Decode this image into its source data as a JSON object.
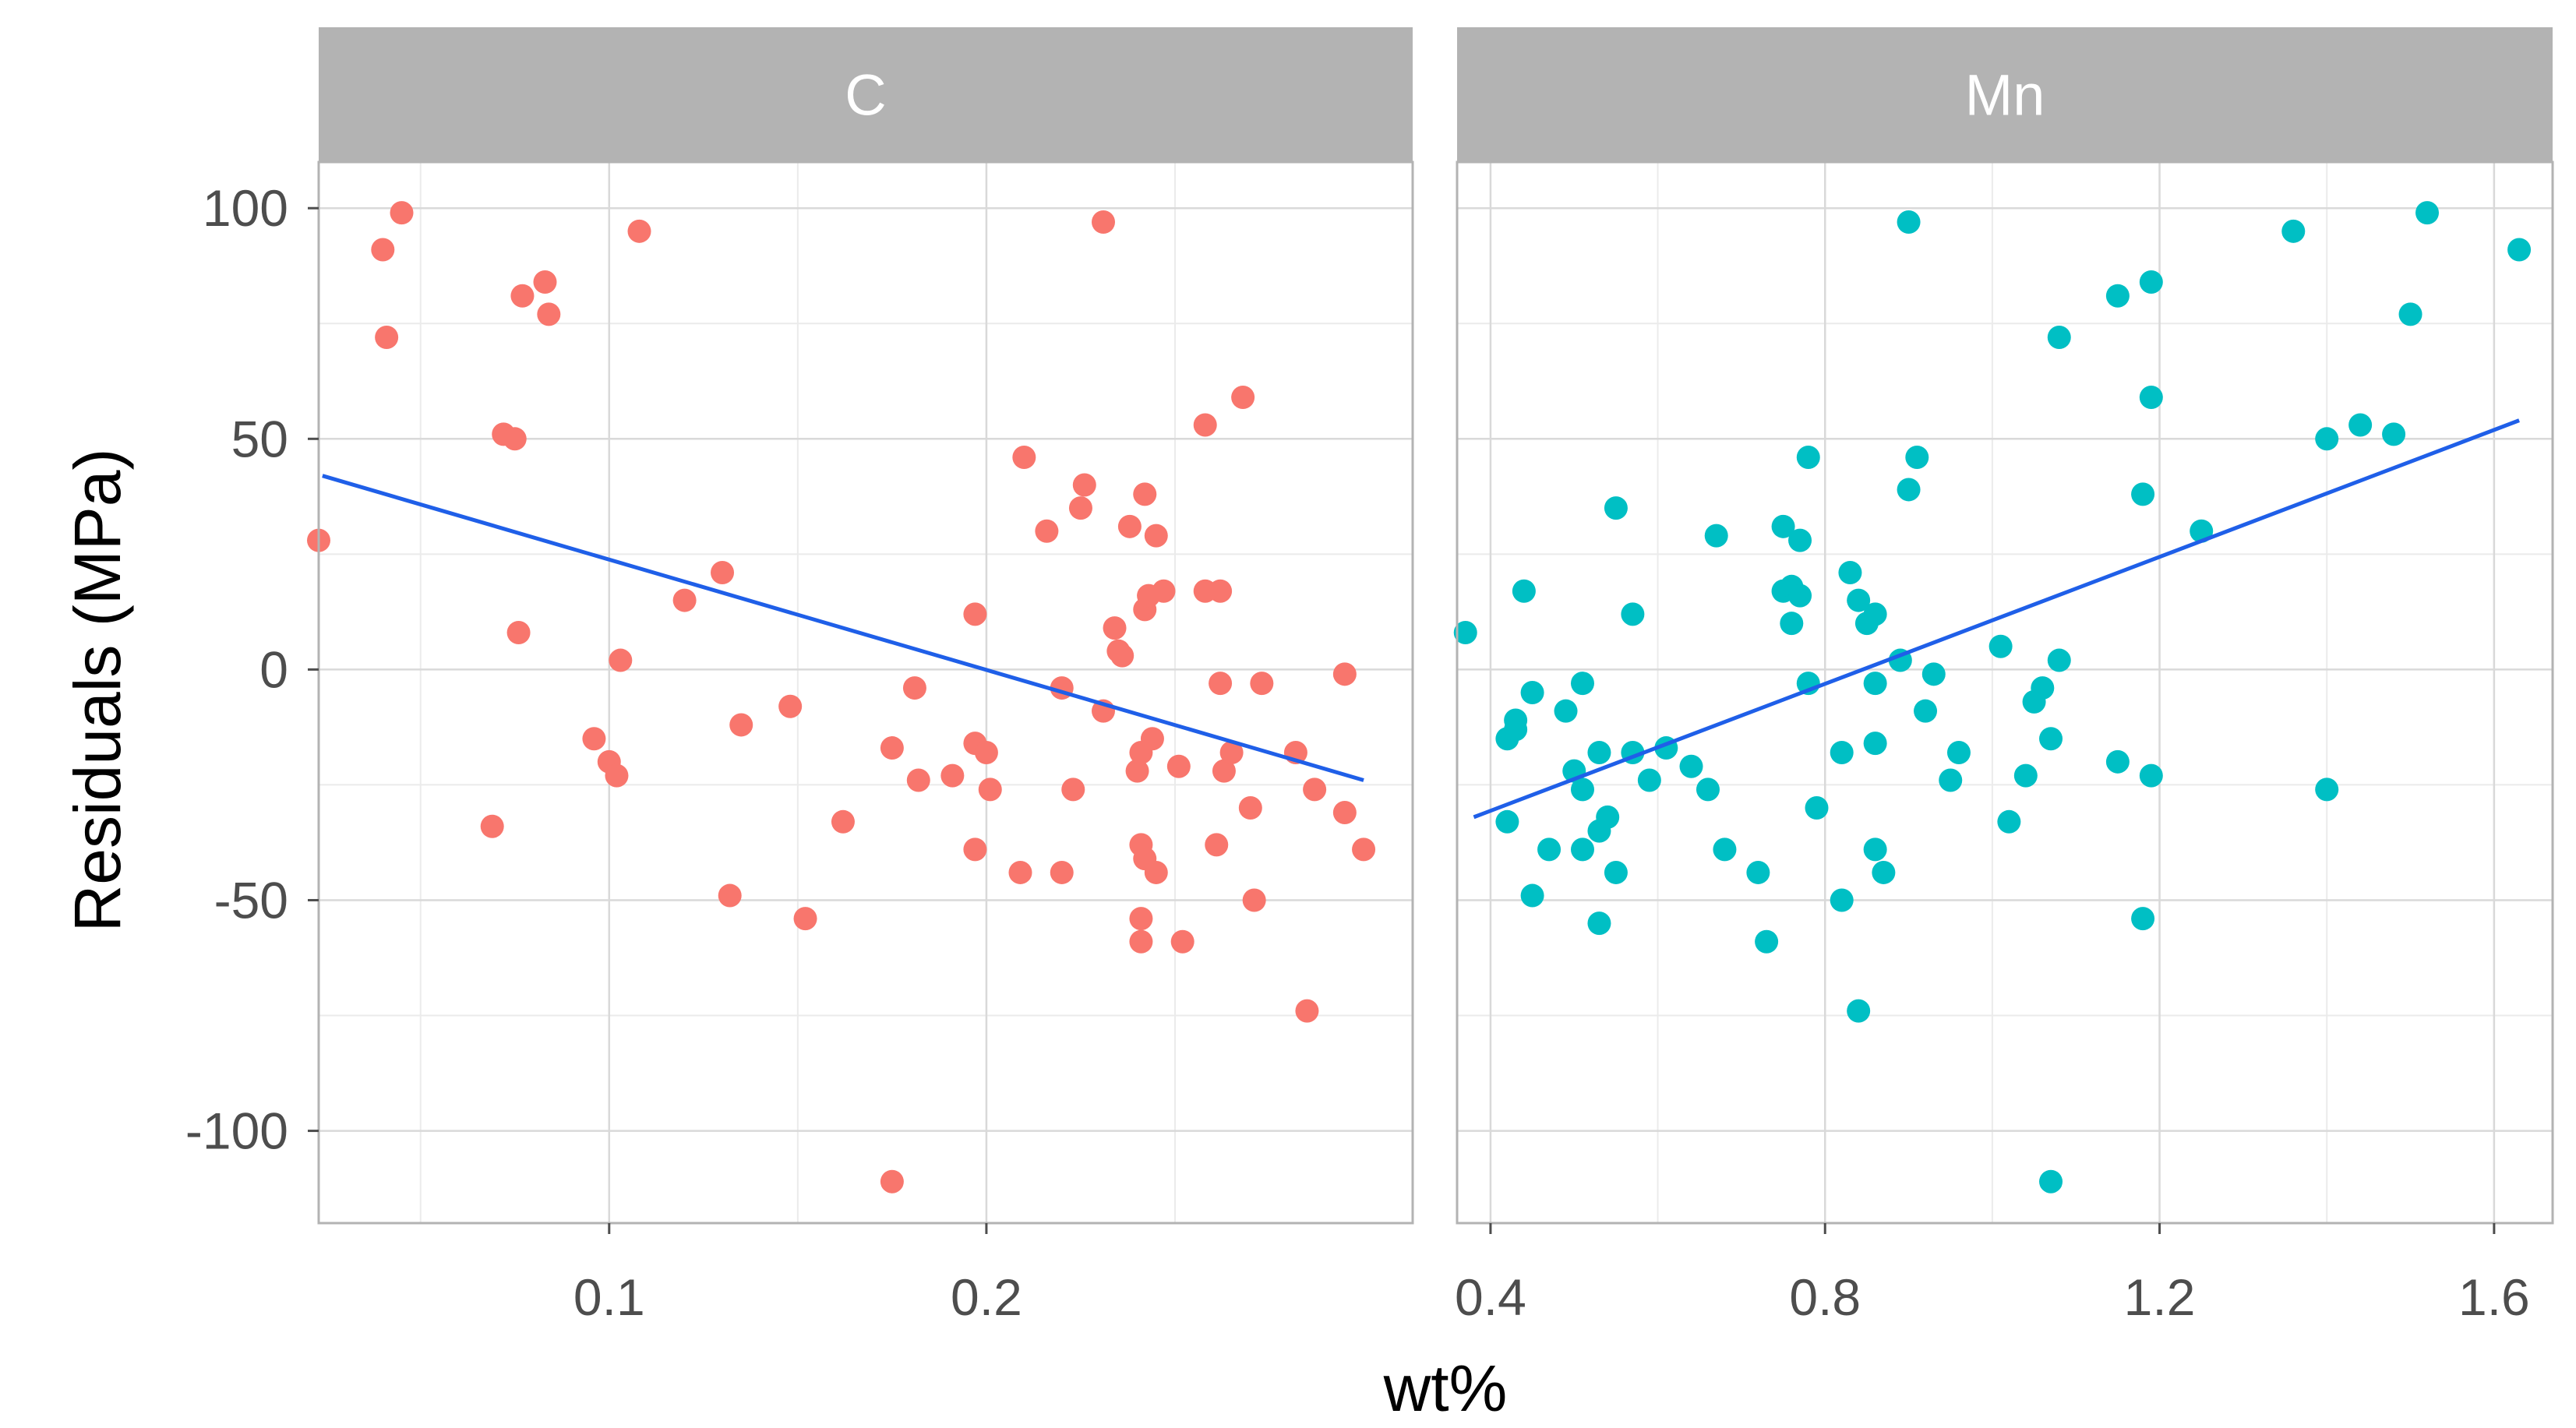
{
  "chart_data": {
    "type": "scatter",
    "title": "",
    "xlabel": "wt%",
    "ylabel": "Residuals (MPa)",
    "ylim": [
      -120,
      110
    ],
    "y_ticks": [
      -100,
      -50,
      0,
      50,
      100
    ],
    "y_tick_labels": [
      "-100",
      "-50",
      "0",
      "50",
      "100"
    ],
    "grid": true,
    "point_colors": {
      "C": "#F8766D",
      "Mn": "#00BFC4"
    },
    "line_color": "#1F5FE8",
    "strip_color": "#B3B3B3",
    "facets": [
      {
        "label": "C",
        "xlim": [
          0.023,
          0.313
        ],
        "x_ticks": [
          0.1,
          0.2
        ],
        "x_tick_labels": [
          "0.1",
          "0.2"
        ],
        "trend": {
          "x": [
            0.024,
            0.3
          ],
          "y": [
            42,
            -24
          ]
        },
        "points": [
          {
            "x": 0.023,
            "y": 28
          },
          {
            "x": 0.04,
            "y": 91
          },
          {
            "x": 0.041,
            "y": 72
          },
          {
            "x": 0.045,
            "y": 99
          },
          {
            "x": 0.069,
            "y": -34
          },
          {
            "x": 0.072,
            "y": 51
          },
          {
            "x": 0.075,
            "y": 50
          },
          {
            "x": 0.076,
            "y": 8
          },
          {
            "x": 0.077,
            "y": 81
          },
          {
            "x": 0.083,
            "y": 84
          },
          {
            "x": 0.084,
            "y": 77
          },
          {
            "x": 0.096,
            "y": -15
          },
          {
            "x": 0.1,
            "y": -20
          },
          {
            "x": 0.102,
            "y": -23
          },
          {
            "x": 0.103,
            "y": 2
          },
          {
            "x": 0.108,
            "y": 95
          },
          {
            "x": 0.12,
            "y": 15
          },
          {
            "x": 0.13,
            "y": 21
          },
          {
            "x": 0.132,
            "y": -49
          },
          {
            "x": 0.135,
            "y": -12
          },
          {
            "x": 0.148,
            "y": -8
          },
          {
            "x": 0.152,
            "y": -54
          },
          {
            "x": 0.162,
            "y": -33
          },
          {
            "x": 0.175,
            "y": -111
          },
          {
            "x": 0.175,
            "y": -17
          },
          {
            "x": 0.181,
            "y": -4
          },
          {
            "x": 0.182,
            "y": -24
          },
          {
            "x": 0.191,
            "y": -23
          },
          {
            "x": 0.197,
            "y": 12
          },
          {
            "x": 0.197,
            "y": -16
          },
          {
            "x": 0.197,
            "y": -39
          },
          {
            "x": 0.2,
            "y": -18
          },
          {
            "x": 0.201,
            "y": -26
          },
          {
            "x": 0.209,
            "y": -44
          },
          {
            "x": 0.21,
            "y": 46
          },
          {
            "x": 0.216,
            "y": 30
          },
          {
            "x": 0.22,
            "y": -44
          },
          {
            "x": 0.22,
            "y": -4
          },
          {
            "x": 0.223,
            "y": -26
          },
          {
            "x": 0.225,
            "y": 35
          },
          {
            "x": 0.226,
            "y": 40
          },
          {
            "x": 0.231,
            "y": -9
          },
          {
            "x": 0.231,
            "y": 97
          },
          {
            "x": 0.234,
            "y": 9
          },
          {
            "x": 0.235,
            "y": 4
          },
          {
            "x": 0.236,
            "y": 3
          },
          {
            "x": 0.238,
            "y": 31
          },
          {
            "x": 0.24,
            "y": -22
          },
          {
            "x": 0.241,
            "y": -18
          },
          {
            "x": 0.241,
            "y": -54
          },
          {
            "x": 0.241,
            "y": -59
          },
          {
            "x": 0.241,
            "y": -38
          },
          {
            "x": 0.242,
            "y": -41
          },
          {
            "x": 0.242,
            "y": 13
          },
          {
            "x": 0.242,
            "y": 38
          },
          {
            "x": 0.243,
            "y": 16
          },
          {
            "x": 0.244,
            "y": -15
          },
          {
            "x": 0.245,
            "y": -44
          },
          {
            "x": 0.245,
            "y": 29
          },
          {
            "x": 0.247,
            "y": 17
          },
          {
            "x": 0.251,
            "y": -21
          },
          {
            "x": 0.252,
            "y": -59
          },
          {
            "x": 0.258,
            "y": 17
          },
          {
            "x": 0.258,
            "y": 53
          },
          {
            "x": 0.261,
            "y": -38
          },
          {
            "x": 0.262,
            "y": 17
          },
          {
            "x": 0.262,
            "y": -3
          },
          {
            "x": 0.263,
            "y": -22
          },
          {
            "x": 0.265,
            "y": -18
          },
          {
            "x": 0.268,
            "y": 59
          },
          {
            "x": 0.27,
            "y": -30
          },
          {
            "x": 0.271,
            "y": -50
          },
          {
            "x": 0.273,
            "y": -3
          },
          {
            "x": 0.282,
            "y": -18
          },
          {
            "x": 0.285,
            "y": -74
          },
          {
            "x": 0.287,
            "y": -26
          },
          {
            "x": 0.295,
            "y": -31
          },
          {
            "x": 0.295,
            "y": -1
          },
          {
            "x": 0.3,
            "y": -39
          }
        ]
      },
      {
        "label": "Mn",
        "xlim": [
          0.36,
          1.67
        ],
        "x_ticks": [
          0.4,
          0.8,
          1.2,
          1.6
        ],
        "x_tick_labels": [
          "0.4",
          "0.8",
          "1.2",
          "1.6"
        ],
        "trend": {
          "x": [
            0.38,
            1.63
          ],
          "y": [
            -32,
            54
          ]
        },
        "points": [
          {
            "x": 0.37,
            "y": 8
          },
          {
            "x": 0.42,
            "y": -15
          },
          {
            "x": 0.42,
            "y": -33
          },
          {
            "x": 0.43,
            "y": -13
          },
          {
            "x": 0.43,
            "y": -11
          },
          {
            "x": 0.44,
            "y": 17
          },
          {
            "x": 0.45,
            "y": -5
          },
          {
            "x": 0.45,
            "y": -49
          },
          {
            "x": 0.47,
            "y": -39
          },
          {
            "x": 0.49,
            "y": -9
          },
          {
            "x": 0.5,
            "y": -22
          },
          {
            "x": 0.51,
            "y": -39
          },
          {
            "x": 0.51,
            "y": -3
          },
          {
            "x": 0.51,
            "y": -26
          },
          {
            "x": 0.53,
            "y": -18
          },
          {
            "x": 0.53,
            "y": -35
          },
          {
            "x": 0.53,
            "y": -55
          },
          {
            "x": 0.54,
            "y": -32
          },
          {
            "x": 0.55,
            "y": -44
          },
          {
            "x": 0.55,
            "y": 35
          },
          {
            "x": 0.57,
            "y": 12
          },
          {
            "x": 0.57,
            "y": -18
          },
          {
            "x": 0.59,
            "y": -24
          },
          {
            "x": 0.61,
            "y": -17
          },
          {
            "x": 0.64,
            "y": -21
          },
          {
            "x": 0.66,
            "y": -26
          },
          {
            "x": 0.67,
            "y": 29
          },
          {
            "x": 0.68,
            "y": -39
          },
          {
            "x": 0.72,
            "y": -44
          },
          {
            "x": 0.73,
            "y": -59
          },
          {
            "x": 0.75,
            "y": 31
          },
          {
            "x": 0.75,
            "y": 17
          },
          {
            "x": 0.76,
            "y": 10
          },
          {
            "x": 0.76,
            "y": 18
          },
          {
            "x": 0.77,
            "y": 16
          },
          {
            "x": 0.77,
            "y": 28
          },
          {
            "x": 0.78,
            "y": -3
          },
          {
            "x": 0.78,
            "y": 46
          },
          {
            "x": 0.79,
            "y": -30
          },
          {
            "x": 0.82,
            "y": -18
          },
          {
            "x": 0.82,
            "y": -50
          },
          {
            "x": 0.83,
            "y": 21
          },
          {
            "x": 0.84,
            "y": -74
          },
          {
            "x": 0.84,
            "y": 15
          },
          {
            "x": 0.85,
            "y": 10
          },
          {
            "x": 0.86,
            "y": 12
          },
          {
            "x": 0.86,
            "y": -16
          },
          {
            "x": 0.86,
            "y": -3
          },
          {
            "x": 0.86,
            "y": -39
          },
          {
            "x": 0.87,
            "y": -44
          },
          {
            "x": 0.89,
            "y": 2
          },
          {
            "x": 0.9,
            "y": 39
          },
          {
            "x": 0.9,
            "y": 97
          },
          {
            "x": 0.91,
            "y": 46
          },
          {
            "x": 0.92,
            "y": -9
          },
          {
            "x": 0.93,
            "y": -1
          },
          {
            "x": 0.95,
            "y": -24
          },
          {
            "x": 0.96,
            "y": -18
          },
          {
            "x": 1.01,
            "y": 5
          },
          {
            "x": 1.02,
            "y": -33
          },
          {
            "x": 1.04,
            "y": -23
          },
          {
            "x": 1.05,
            "y": -7
          },
          {
            "x": 1.06,
            "y": -4
          },
          {
            "x": 1.07,
            "y": -15
          },
          {
            "x": 1.07,
            "y": -111
          },
          {
            "x": 1.08,
            "y": 2
          },
          {
            "x": 1.08,
            "y": 72
          },
          {
            "x": 1.15,
            "y": -20
          },
          {
            "x": 1.15,
            "y": 81
          },
          {
            "x": 1.18,
            "y": -54
          },
          {
            "x": 1.18,
            "y": 38
          },
          {
            "x": 1.19,
            "y": 59
          },
          {
            "x": 1.19,
            "y": 84
          },
          {
            "x": 1.19,
            "y": -23
          },
          {
            "x": 1.25,
            "y": 30
          },
          {
            "x": 1.36,
            "y": 95
          },
          {
            "x": 1.4,
            "y": -26
          },
          {
            "x": 1.4,
            "y": 50
          },
          {
            "x": 1.44,
            "y": 53
          },
          {
            "x": 1.48,
            "y": 51
          },
          {
            "x": 1.5,
            "y": 77
          },
          {
            "x": 1.52,
            "y": 99
          },
          {
            "x": 1.63,
            "y": 91
          }
        ]
      }
    ]
  }
}
